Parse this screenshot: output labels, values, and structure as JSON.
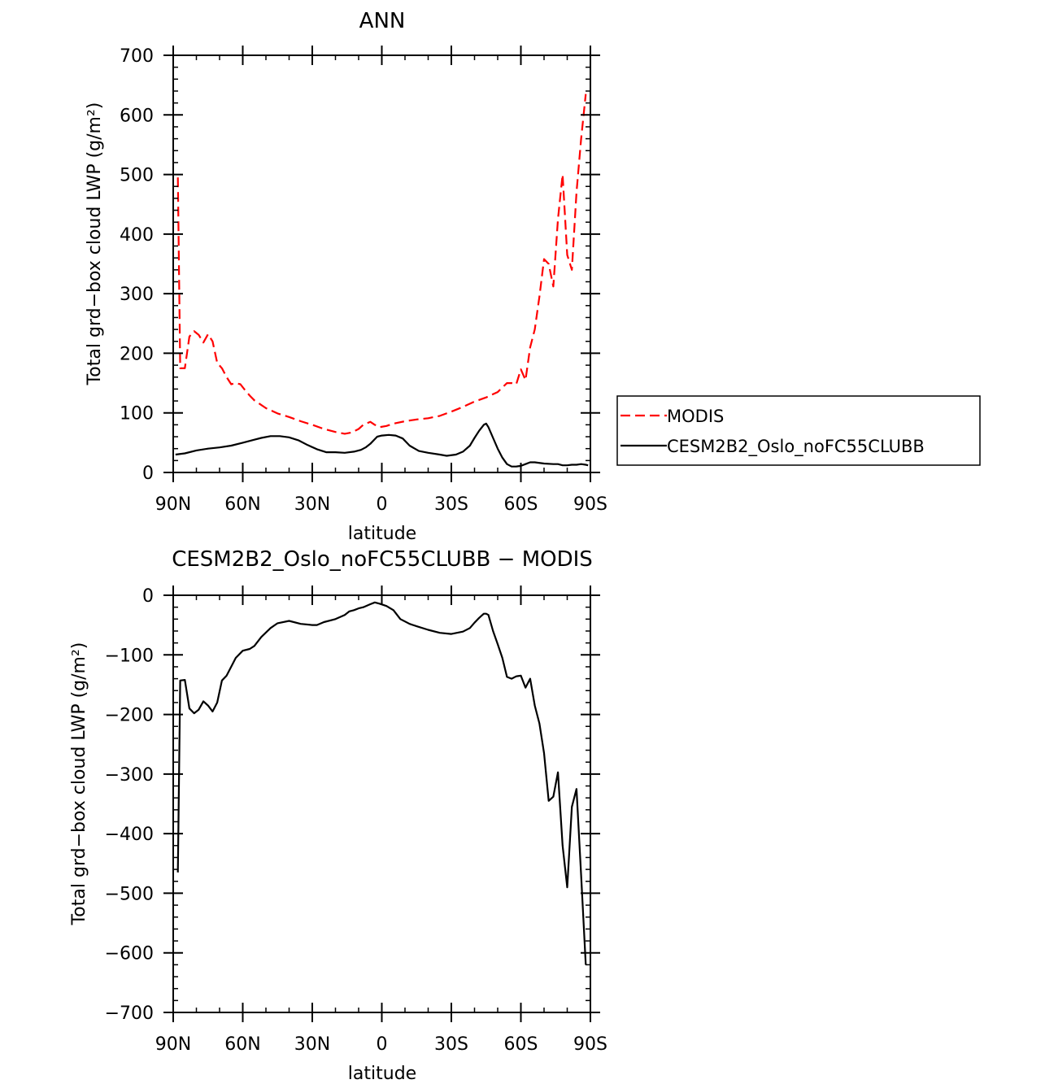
{
  "chart_data": [
    {
      "type": "line",
      "title": "ANN",
      "xlabel": "latitude",
      "ylabel": "Total grd−box cloud LWP (g/m²)",
      "xlim": [
        -90,
        90
      ],
      "ylim": [
        0,
        700
      ],
      "yticks": [
        0,
        100,
        200,
        300,
        400,
        500,
        600,
        700
      ],
      "xticks": [
        -90,
        -60,
        -30,
        0,
        30,
        60,
        90
      ],
      "xticklabels": [
        "90N",
        "60N",
        "30N",
        "0",
        "30S",
        "60S",
        "90S"
      ],
      "legend_position": "right",
      "series": [
        {
          "name": "MODIS",
          "color": "#ff0000",
          "dash": "dashed",
          "x": [
            -88,
            -87,
            -85,
            -83,
            -81,
            -79,
            -77,
            -75,
            -73,
            -71,
            -69,
            -67,
            -65,
            -63,
            -61,
            -59,
            -57,
            -55,
            -50,
            -45,
            -40,
            -35,
            -30,
            -25,
            -20,
            -16,
            -13,
            -10,
            -8,
            -5,
            -3,
            -1,
            2,
            5,
            10,
            15,
            20,
            25,
            30,
            35,
            40,
            45,
            50,
            54,
            56,
            58,
            60,
            62,
            64,
            66,
            68,
            70,
            72,
            74,
            76,
            78,
            80,
            82,
            84,
            86,
            88
          ],
          "y": [
            495,
            175,
            175,
            228,
            237,
            231,
            218,
            232,
            220,
            184,
            175,
            160,
            148,
            150,
            148,
            138,
            129,
            121,
            108,
            99,
            93,
            86,
            80,
            73,
            68,
            65,
            67,
            73,
            80,
            85,
            80,
            76,
            78,
            82,
            86,
            89,
            91,
            95,
            102,
            110,
            119,
            126,
            135,
            150,
            150,
            148,
            173,
            155,
            210,
            240,
            295,
            358,
            350,
            312,
            425,
            500,
            365,
            340,
            470,
            560,
            635
          ]
        },
        {
          "name": "CESM2B2_Oslo_noFC55CLUBB",
          "color": "#000000",
          "dash": "solid",
          "x": [
            -89,
            -85,
            -80,
            -75,
            -70,
            -65,
            -60,
            -55,
            -52,
            -48,
            -44,
            -40,
            -36,
            -32,
            -28,
            -24,
            -20,
            -16,
            -12,
            -9,
            -7,
            -5,
            -2,
            0,
            3,
            6,
            9,
            12,
            16,
            20,
            25,
            28,
            32,
            35,
            38,
            40,
            42,
            44,
            45,
            46,
            48,
            50,
            52,
            54,
            56,
            58,
            60,
            62,
            64,
            66,
            70,
            74,
            76,
            78,
            80,
            82,
            84,
            86,
            88,
            89
          ],
          "y": [
            30,
            32,
            37,
            40,
            42,
            45,
            50,
            55,
            58,
            61,
            61,
            59,
            54,
            46,
            39,
            34,
            34,
            33,
            35,
            38,
            42,
            48,
            60,
            62,
            63,
            62,
            57,
            45,
            36,
            33,
            30,
            28,
            30,
            35,
            45,
            58,
            70,
            80,
            82,
            76,
            58,
            40,
            25,
            14,
            10,
            10,
            11,
            14,
            17,
            17,
            15,
            14,
            14,
            12,
            12,
            13,
            13,
            14,
            13,
            12
          ]
        }
      ]
    },
    {
      "type": "line",
      "title": "CESM2B2_Oslo_noFC55CLUBB − MODIS",
      "xlabel": "latitude",
      "ylabel": "Total grd−box cloud LWP (g/m²)",
      "xlim": [
        -90,
        90
      ],
      "ylim": [
        -700,
        0
      ],
      "yticks": [
        -700,
        -600,
        -500,
        -400,
        -300,
        -200,
        -100,
        0
      ],
      "xticks": [
        -90,
        -60,
        -30,
        0,
        30,
        60,
        90
      ],
      "xticklabels": [
        "90N",
        "60N",
        "30N",
        "0",
        "30S",
        "60S",
        "90S"
      ],
      "series": [
        {
          "color": "#000000",
          "dash": "solid",
          "x": [
            -88,
            -87,
            -85,
            -83,
            -81,
            -79,
            -77,
            -75,
            -73,
            -71,
            -69,
            -67,
            -65,
            -63,
            -60,
            -57,
            -55,
            -52,
            -48,
            -45,
            -40,
            -35,
            -30,
            -28,
            -25,
            -20,
            -16,
            -14,
            -12,
            -10,
            -8,
            -5,
            -3,
            -1,
            2,
            5,
            8,
            12,
            15,
            20,
            25,
            30,
            35,
            38,
            40,
            42,
            44,
            45,
            46,
            48,
            50,
            52,
            54,
            56,
            58,
            60,
            62,
            64,
            66,
            68,
            70,
            72,
            74,
            76,
            78,
            80,
            82,
            84,
            86,
            88
          ],
          "y": [
            -465,
            -143,
            -142,
            -190,
            -198,
            -192,
            -178,
            -185,
            -195,
            -180,
            -143,
            -135,
            -120,
            -105,
            -93,
            -90,
            -85,
            -70,
            -55,
            -47,
            -43,
            -48,
            -50,
            -50,
            -45,
            -40,
            -33,
            -27,
            -25,
            -22,
            -20,
            -15,
            -12,
            -14,
            -18,
            -25,
            -40,
            -48,
            -52,
            -58,
            -63,
            -65,
            -61,
            -55,
            -46,
            -38,
            -31,
            -31,
            -33,
            -60,
            -82,
            -105,
            -137,
            -140,
            -136,
            -135,
            -155,
            -140,
            -185,
            -215,
            -265,
            -345,
            -338,
            -297,
            -420,
            -490,
            -355,
            -325,
            -470,
            -620
          ]
        }
      ]
    }
  ]
}
